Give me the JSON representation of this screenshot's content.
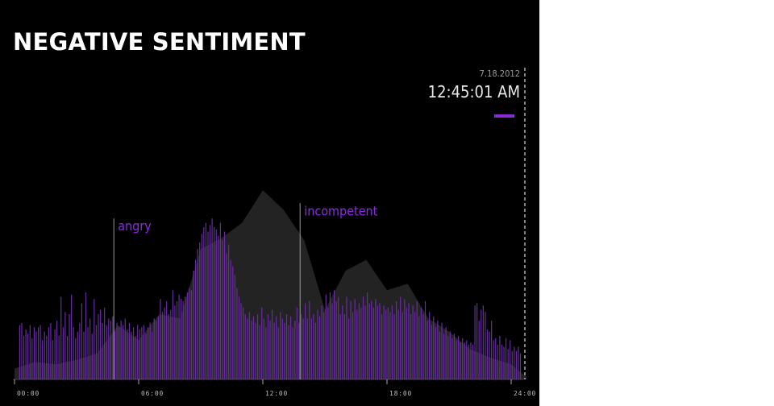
{
  "page": {
    "title": "NEGATIVE SENTIMENT"
  },
  "header": {
    "date": "7.18.2012",
    "time": "12:45:01 AM"
  },
  "colors": {
    "background": "#000000",
    "bar": "#6a2aa6",
    "accent": "#8a2be2",
    "area": "#232323",
    "annotation_line": "#999999"
  },
  "chart_data": {
    "type": "bar",
    "title": "NEGATIVE SENTIMENT",
    "x_unit": "hours",
    "xlim": [
      0,
      24
    ],
    "ylim": [
      0,
      100
    ],
    "xticks": [
      {
        "value": 0,
        "label": "00:00"
      },
      {
        "value": 6,
        "label": "06:00"
      },
      {
        "value": 12,
        "label": "12:00"
      },
      {
        "value": 18,
        "label": "18:00"
      },
      {
        "value": 24,
        "label": "24:00"
      }
    ],
    "current_time": 24.75,
    "annotations": [
      {
        "x": 4.8,
        "label": "angry",
        "y": 74
      },
      {
        "x": 13.8,
        "label": "incompetent",
        "y": 81
      }
    ],
    "series": [
      {
        "kind": "area",
        "points": [
          [
            0,
            5
          ],
          [
            1,
            8
          ],
          [
            2,
            7
          ],
          [
            3,
            9
          ],
          [
            4,
            12
          ],
          [
            5,
            25
          ],
          [
            6,
            18
          ],
          [
            7,
            30
          ],
          [
            8,
            28
          ],
          [
            9,
            60
          ],
          [
            10,
            65
          ],
          [
            11,
            72
          ],
          [
            12,
            87
          ],
          [
            13,
            78
          ],
          [
            14,
            64
          ],
          [
            15,
            32
          ],
          [
            16,
            50
          ],
          [
            17,
            55
          ],
          [
            18,
            41
          ],
          [
            19,
            44
          ],
          [
            20,
            28
          ],
          [
            21,
            22
          ],
          [
            22,
            14
          ],
          [
            23,
            10
          ],
          [
            24,
            7
          ],
          [
            24.75,
            1
          ]
        ]
      },
      {
        "kind": "bars",
        "start": 0.25,
        "step": 0.1,
        "values": [
          25,
          26,
          20,
          23,
          21,
          25,
          19,
          24,
          22,
          24,
          25,
          18,
          22,
          20,
          24,
          26,
          18,
          23,
          27,
          20,
          38,
          24,
          31,
          20,
          30,
          39,
          24,
          19,
          22,
          26,
          35,
          22,
          40,
          24,
          28,
          21,
          37,
          25,
          30,
          32,
          26,
          33,
          25,
          28,
          27,
          29,
          22,
          26,
          24,
          27,
          25,
          28,
          23,
          26,
          22,
          24,
          20,
          25,
          23,
          24,
          25,
          21,
          24,
          26,
          22,
          28,
          27,
          29,
          37,
          31,
          33,
          36,
          30,
          32,
          41,
          34,
          36,
          39,
          37,
          36,
          38,
          40,
          42,
          41,
          50,
          55,
          60,
          63,
          67,
          70,
          72,
          68,
          71,
          74,
          70,
          69,
          66,
          72,
          64,
          68,
          58,
          62,
          55,
          52,
          48,
          42,
          38,
          35,
          33,
          30,
          28,
          31,
          27,
          29,
          26,
          30,
          25,
          33,
          28,
          24,
          30,
          27,
          32,
          26,
          29,
          24,
          31,
          28,
          26,
          30,
          25,
          29,
          24,
          27,
          33,
          26,
          30,
          28,
          35,
          28,
          36,
          28,
          30,
          26,
          32,
          29,
          34,
          31,
          39,
          33,
          40,
          35,
          41,
          36,
          38,
          30,
          34,
          30,
          38,
          28,
          36,
          31,
          37,
          32,
          35,
          33,
          38,
          34,
          40,
          35,
          36,
          33,
          37,
          34,
          35,
          30,
          34,
          32,
          33,
          31,
          34,
          30,
          36,
          32,
          38,
          31,
          37,
          33,
          35,
          30,
          34,
          31,
          36,
          29,
          33,
          30,
          36,
          27,
          31,
          25,
          29,
          24,
          27,
          22,
          26,
          21,
          24,
          20,
          22,
          19,
          21,
          18,
          20,
          17,
          19,
          17,
          18,
          16,
          17,
          16,
          34,
          35,
          27,
          32,
          34,
          31,
          23,
          22,
          27,
          18,
          19,
          16,
          20,
          16,
          15,
          19,
          14,
          18,
          13,
          15,
          13,
          15,
          12
        ]
      }
    ]
  }
}
